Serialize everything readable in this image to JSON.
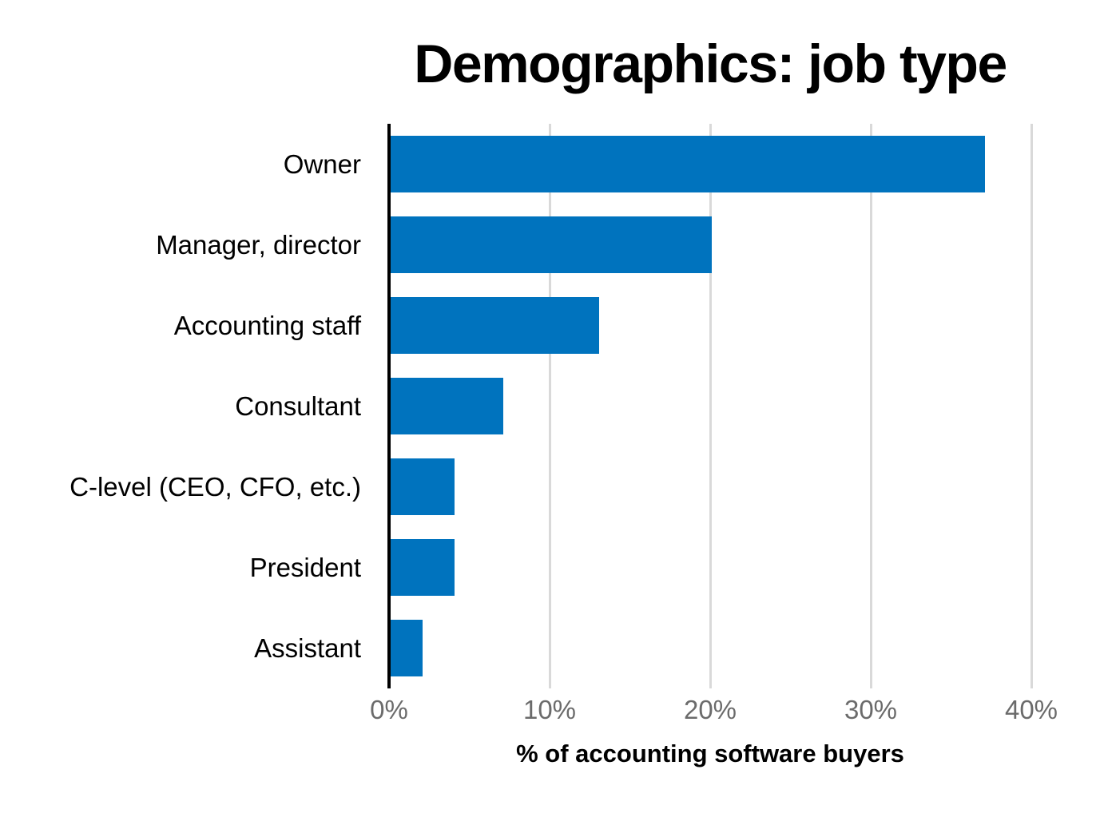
{
  "chart_data": {
    "type": "bar",
    "orientation": "horizontal",
    "title": "Demographics: job type",
    "categories": [
      "Owner",
      "Manager, director",
      "Accounting staff",
      "Consultant",
      "C-level (CEO, CFO, etc.)",
      "President",
      "Assistant"
    ],
    "values": [
      37,
      20,
      13,
      7,
      4,
      4,
      2
    ],
    "xlabel": "% of accounting software buyers",
    "ylabel": "",
    "xlim": [
      0,
      40
    ],
    "xticks": [
      0,
      10,
      20,
      30,
      40
    ],
    "xtick_labels": [
      "0%",
      "10%",
      "20%",
      "30%",
      "40%"
    ],
    "grid": true,
    "legend": false,
    "colors": {
      "bar": "#0073be",
      "gridline": "#d9d9d9",
      "axis_line": "#000000",
      "tick_label": "#6b6b6b",
      "text": "#000000"
    }
  }
}
